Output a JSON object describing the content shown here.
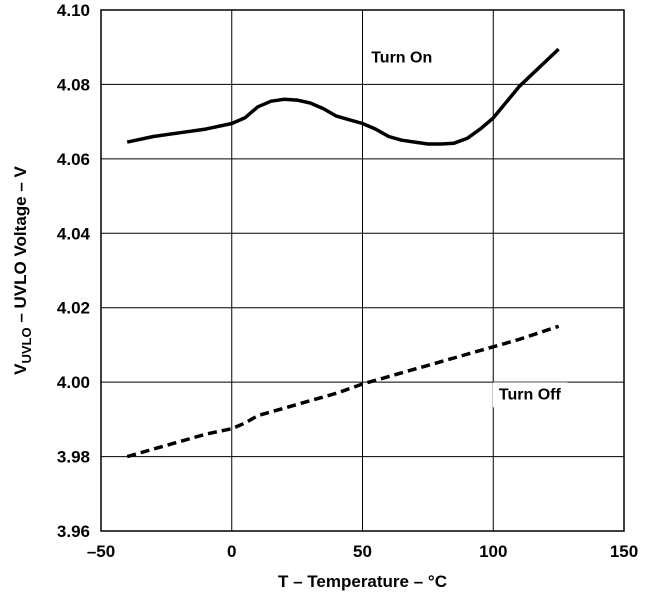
{
  "chart_data": {
    "type": "line",
    "xlabel": "T – Temperature – °C",
    "ylabel": {
      "prefix": "V",
      "subscript": "UVLO",
      "suffix": " – UVLO Voltage – V"
    },
    "xlim": [
      -50,
      150
    ],
    "ylim": [
      3.96,
      4.1
    ],
    "xticks": [
      -50,
      0,
      50,
      100,
      150
    ],
    "xtick_labels": [
      "–50",
      "0",
      "50",
      "100",
      "150"
    ],
    "yticks": [
      3.96,
      3.98,
      4.0,
      4.02,
      4.04,
      4.06,
      4.08,
      4.1
    ],
    "ytick_labels": [
      "3.96",
      "3.98",
      "4.00",
      "4.02",
      "4.04",
      "4.06",
      "4.08",
      "4.10"
    ],
    "grid": true,
    "series": [
      {
        "name": "Turn On",
        "style": "solid",
        "x": [
          -40,
          -30,
          -20,
          -10,
          0,
          5,
          10,
          15,
          20,
          25,
          30,
          35,
          40,
          45,
          50,
          55,
          60,
          65,
          70,
          75,
          80,
          85,
          90,
          95,
          100,
          110,
          125
        ],
        "y": [
          4.0645,
          4.066,
          4.067,
          4.068,
          4.0695,
          4.071,
          4.074,
          4.0755,
          4.076,
          4.0758,
          4.075,
          4.0735,
          4.0715,
          4.0705,
          4.0695,
          4.068,
          4.066,
          4.065,
          4.0645,
          4.064,
          4.064,
          4.0642,
          4.0655,
          4.068,
          4.071,
          4.0795,
          4.0895
        ]
      },
      {
        "name": "Turn Off",
        "style": "dashed",
        "x": [
          -40,
          -30,
          -20,
          -10,
          0,
          5,
          10,
          20,
          30,
          40,
          50,
          60,
          70,
          80,
          90,
          100,
          110,
          125
        ],
        "y": [
          3.98,
          3.982,
          3.984,
          3.986,
          3.9875,
          3.989,
          3.991,
          3.993,
          3.995,
          3.997,
          3.9995,
          4.0015,
          4.0035,
          4.0055,
          4.0075,
          4.0095,
          4.0115,
          4.015
        ]
      }
    ],
    "annotations": [
      {
        "text": "Turn On",
        "x": 65,
        "y": 4.0875
      },
      {
        "text": "Turn Off",
        "x": 114,
        "y": 3.997
      }
    ]
  }
}
